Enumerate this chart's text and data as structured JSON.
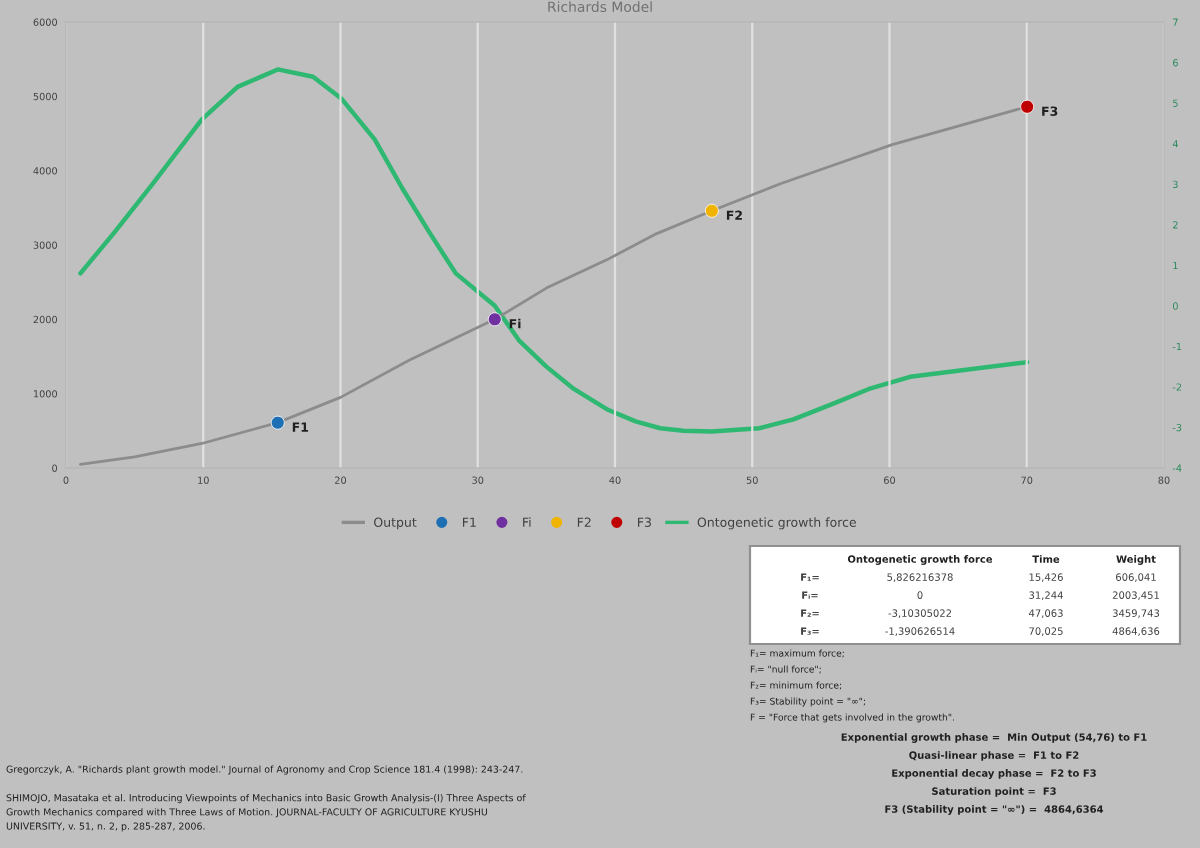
{
  "chart_data": {
    "type": "line",
    "title": "Richards Model",
    "xlim": [
      0,
      80
    ],
    "xticks": [
      0,
      10,
      20,
      30,
      40,
      50,
      60,
      70,
      80
    ],
    "ylim": [
      0,
      6000
    ],
    "yticks": [
      0,
      1000,
      2000,
      3000,
      4000,
      5000,
      6000
    ],
    "y2lim": [
      -4,
      7
    ],
    "y2ticks": [
      -4,
      -3,
      -2,
      -1,
      0,
      1,
      2,
      3,
      4,
      5,
      6,
      7
    ],
    "grid": "x",
    "legend": "bottom",
    "series": [
      {
        "name": "Output",
        "color": "#8c8c8c",
        "x": [
          1.05,
          5,
          9.9,
          15.43,
          20,
          25,
          31.24,
          35,
          39.4,
          43,
          47.06,
          52,
          56,
          60.2,
          65,
          70.03
        ],
        "values": [
          50,
          150,
          330,
          610,
          950,
          1450,
          2000,
          2420,
          2800,
          3150,
          3460,
          3820,
          4080,
          4350,
          4600,
          4860
        ]
      },
      {
        "name": "F1",
        "type": "scatter",
        "color": "#1f6fb4",
        "x": [
          15.43
        ],
        "values": [
          610
        ]
      },
      {
        "name": "Fi",
        "type": "scatter",
        "color": "#7030a0",
        "x": [
          31.24
        ],
        "values": [
          2000
        ]
      },
      {
        "name": "F2",
        "type": "scatter",
        "color": "#f0b400",
        "x": [
          47.06
        ],
        "values": [
          3460
        ]
      },
      {
        "name": "F3",
        "type": "scatter",
        "color": "#c00000",
        "x": [
          70.03
        ],
        "values": [
          4860
        ]
      },
      {
        "name": "Ontogenetic growth force",
        "axis": "y2",
        "color": "#2eb872",
        "x": [
          1.05,
          3.5,
          6.3,
          9.9,
          12.5,
          15.43,
          18,
          20.1,
          22.5,
          24.5,
          26.5,
          28.4,
          31.24,
          33,
          35,
          37,
          39.4,
          41.5,
          43.3,
          45,
          47.06,
          50.5,
          53,
          56,
          58.5,
          61.5,
          65,
          70.03
        ],
        "values": [
          0.8,
          1.8,
          3.0,
          4.6,
          5.4,
          5.83,
          5.65,
          5.1,
          4.1,
          2.9,
          1.8,
          0.8,
          0,
          -0.85,
          -1.5,
          -2.05,
          -2.55,
          -2.85,
          -3.02,
          -3.08,
          -3.1,
          -3.02,
          -2.8,
          -2.4,
          -2.05,
          -1.75,
          -1.6,
          -1.39
        ]
      }
    ],
    "annotations": [
      "Ontogenetic growth force",
      "Time",
      "Weight",
      "F₁=",
      "5,826216378",
      "15,426",
      "606,041",
      "Fᵢ=",
      "0",
      "31,244",
      "2003,451",
      "F₂=",
      "-3,10305022",
      "47,063",
      "3459,743",
      "F₃=",
      "-1,390626514",
      "70,025",
      "4864,636",
      "F₁= maximum force;",
      "Fᵢ= \"null force\";",
      "F₂= minimum force;",
      "F₃= Stability point = \"∞\";",
      "F = \"Force that gets involved in the growth\".",
      "Exponential growth phase =  Min Output (54,76) to F1",
      "Quasi-linear phase =  F1 to F2",
      "Exponential decay phase =  F2 to F3",
      "Saturation point =  F3",
      "F3 (Stability point = \"∞\") =  4864,6364",
      "Gregorczyk, A. \"Richards plant growth model.\" Journal of Agronomy and Crop Science 181.4 (1998): 243-247.",
      "SHIMOJO, Masataka et al. Introducing Viewpoints of Mechanics into Basic Growth Analysis-(I) Three Aspects of\nGrowth Mechanics compared with Three Laws of Motion. JOURNAL-FACULTY OF AGRICULTURE KYUSHU\nUNIVERSITY, v. 51, n. 2, p. 285-287, 2006."
    ]
  }
}
